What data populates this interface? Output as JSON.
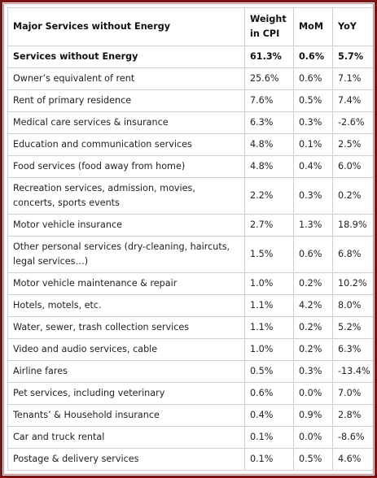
{
  "table": {
    "headers": {
      "name": "Major Services without Energy",
      "weight": "Weight in CPI",
      "mom": "MoM",
      "yoy": "YoY"
    },
    "rows": [
      {
        "name": "Services without Energy",
        "weight": "61.3%",
        "mom": "0.6%",
        "yoy": "5.7%",
        "bold": true
      },
      {
        "name": "Owner’s equivalent of rent",
        "weight": "25.6%",
        "mom": "0.6%",
        "yoy": "7.1%"
      },
      {
        "name": "Rent of primary residence",
        "weight": "7.6%",
        "mom": "0.5%",
        "yoy": "7.4%"
      },
      {
        "name": "Medical care services & insurance",
        "weight": "6.3%",
        "mom": "0.3%",
        "yoy": "-2.6%"
      },
      {
        "name": "Education and communication services",
        "weight": "4.8%",
        "mom": "0.1%",
        "yoy": "2.5%"
      },
      {
        "name": "Food services (food away from home)",
        "weight": "4.8%",
        "mom": "0.4%",
        "yoy": "6.0%"
      },
      {
        "name": "Recreation services, admission, movies, concerts, sports events",
        "weight": "2.2%",
        "mom": "0.3%",
        "yoy": "0.2%",
        "tall": true
      },
      {
        "name": "Motor vehicle insurance",
        "weight": "2.7%",
        "mom": "1.3%",
        "yoy": "18.9%"
      },
      {
        "name": "Other personal services (dry-cleaning, haircuts, legal services…)",
        "weight": "1.5%",
        "mom": "0.6%",
        "yoy": "6.8%",
        "tall": true
      },
      {
        "name": "Motor vehicle maintenance & repair",
        "weight": "1.0%",
        "mom": "0.2%",
        "yoy": "10.2%"
      },
      {
        "name": "Hotels, motels, etc.",
        "weight": "1.1%",
        "mom": "4.2%",
        "yoy": "8.0%"
      },
      {
        "name": "Water, sewer, trash collection services",
        "weight": "1.1%",
        "mom": "0.2%",
        "yoy": "5.2%"
      },
      {
        "name": "Video and audio services, cable",
        "weight": "1.0%",
        "mom": "0.2%",
        "yoy": "6.3%"
      },
      {
        "name": "Airline fares",
        "weight": "0.5%",
        "mom": "0.3%",
        "yoy": "-13.4%"
      },
      {
        "name": "Pet services, including veterinary",
        "weight": "0.6%",
        "mom": "0.0%",
        "yoy": "7.0%"
      },
      {
        "name": "Tenants’ & Household insurance",
        "weight": "0.4%",
        "mom": "0.9%",
        "yoy": "2.8%"
      },
      {
        "name": "Car and truck rental",
        "weight": "0.1%",
        "mom": "0.0%",
        "yoy": "-8.6%"
      },
      {
        "name": "Postage & delivery services",
        "weight": "0.1%",
        "mom": "0.5%",
        "yoy": "4.6%"
      }
    ]
  }
}
